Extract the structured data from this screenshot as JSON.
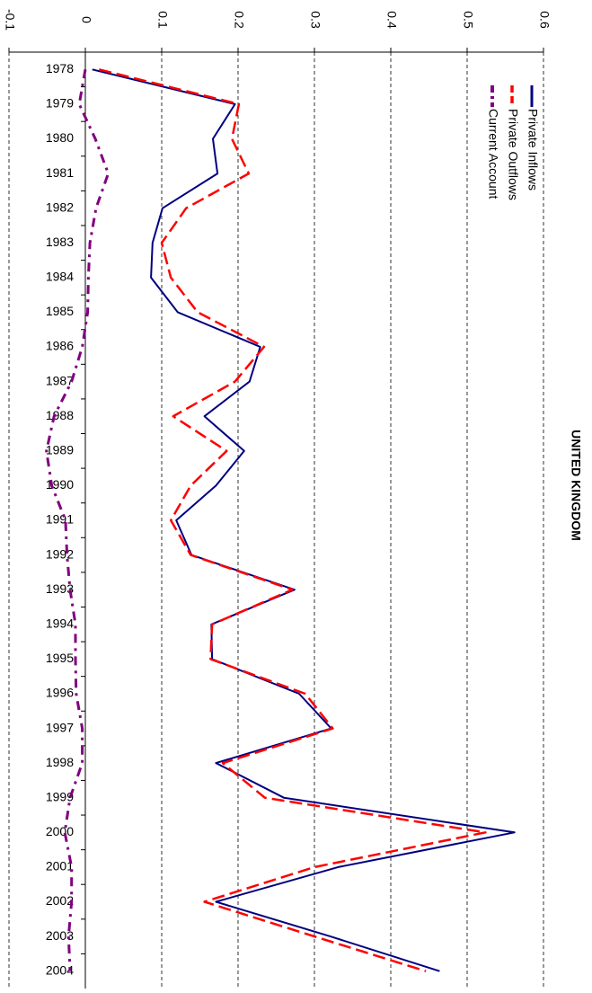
{
  "chart_data": {
    "type": "line",
    "orientation": "rotated",
    "title": "UNITED KINGDOM",
    "categories": [
      "1978",
      "1979",
      "1980",
      "1981",
      "1982",
      "1983",
      "1984",
      "1985",
      "1986",
      "1987",
      "1988",
      "1989",
      "1990",
      "1991",
      "1992",
      "1993",
      "1994",
      "1995",
      "1996",
      "1997",
      "1998",
      "1999",
      "2000",
      "2001",
      "2002",
      "2003",
      "2004"
    ],
    "series": [
      {
        "name": "Private Inflows",
        "color": "#000080",
        "dash": "solid",
        "values": [
          0.009,
          0.196,
          0.167,
          0.173,
          0.101,
          0.088,
          0.086,
          0.121,
          0.229,
          0.215,
          0.156,
          0.208,
          0.171,
          0.119,
          0.139,
          0.274,
          0.165,
          0.166,
          0.28,
          0.322,
          0.171,
          0.26,
          0.562,
          0.331,
          0.171,
          0.321,
          0.464
        ]
      },
      {
        "name": "Private Outflows",
        "color": "#ff0000",
        "dash": "dashed",
        "values": [
          0.018,
          0.201,
          0.192,
          0.214,
          0.132,
          0.1,
          0.112,
          0.147,
          0.234,
          0.196,
          0.115,
          0.185,
          0.138,
          0.112,
          0.138,
          0.271,
          0.166,
          0.164,
          0.288,
          0.324,
          0.18,
          0.235,
          0.524,
          0.3,
          0.156,
          0.3,
          0.446
        ]
      },
      {
        "name": "Current Account",
        "color": "#800080",
        "dash": "dashdot",
        "values": [
          0,
          -0.008,
          0.013,
          0.03,
          0.014,
          0.006,
          0.004,
          0.003,
          -0.004,
          -0.018,
          -0.041,
          -0.051,
          -0.044,
          -0.026,
          -0.024,
          -0.02,
          -0.013,
          -0.013,
          -0.012,
          -0.004,
          -0.004,
          -0.02,
          -0.027,
          -0.018,
          -0.018,
          -0.022,
          -0.02
        ]
      }
    ],
    "ylim": [
      -0.1,
      0.6
    ],
    "yticks": [
      -0.1,
      0,
      0.1,
      0.2,
      0.3,
      0.4,
      0.5,
      0.6
    ],
    "grid": true,
    "legend": "top-right"
  }
}
